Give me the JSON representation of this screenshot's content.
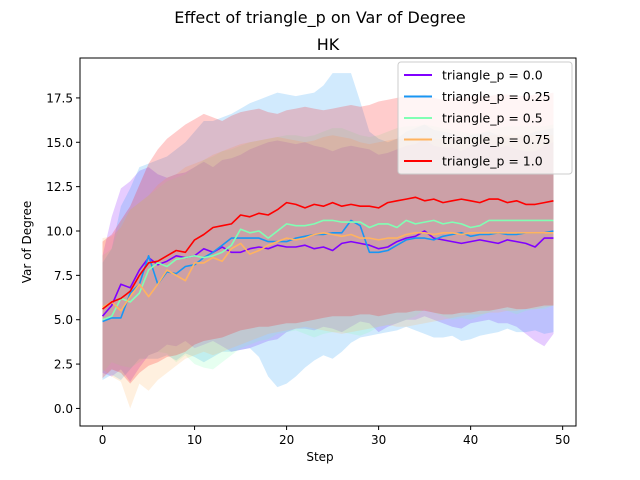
{
  "chart_data": {
    "type": "line",
    "title": "Effect of triangle_p on  Var of Degree",
    "subtitle": "HK",
    "xlabel": "Step",
    "ylabel": "Var of Degree",
    "xlim": [
      -2.45,
      51.45
    ],
    "ylim": [
      -0.99,
      19.75
    ],
    "xticks": [
      0,
      10,
      20,
      30,
      40,
      50
    ],
    "yticks": [
      0.0,
      2.5,
      5.0,
      7.5,
      10.0,
      12.5,
      15.0,
      17.5
    ],
    "grid": false,
    "legend_position": "top-right",
    "x": [
      0,
      1,
      2,
      3,
      4,
      5,
      6,
      7,
      8,
      9,
      10,
      11,
      12,
      13,
      14,
      15,
      16,
      17,
      18,
      19,
      20,
      21,
      22,
      23,
      24,
      25,
      26,
      27,
      28,
      29,
      30,
      31,
      32,
      33,
      34,
      35,
      36,
      37,
      38,
      39,
      40,
      41,
      42,
      43,
      44,
      45,
      46,
      47,
      48,
      49
    ],
    "series": [
      {
        "name": "triangle_p = 0.0",
        "color": "#8000ff",
        "values": [
          5.2,
          5.8,
          7.0,
          6.8,
          7.8,
          8.5,
          8.1,
          8.3,
          8.6,
          8.5,
          8.6,
          9.0,
          8.8,
          9.1,
          8.8,
          8.8,
          9.0,
          9.1,
          9.0,
          9.2,
          9.1,
          9.1,
          9.2,
          9.0,
          9.1,
          8.9,
          9.3,
          9.4,
          9.3,
          9.2,
          9.0,
          9.1,
          9.4,
          9.6,
          9.7,
          10.0,
          9.6,
          9.5,
          9.4,
          9.3,
          9.4,
          9.5,
          9.4,
          9.3,
          9.5,
          9.4,
          9.3,
          9.1,
          9.6,
          9.6
        ],
        "lower": [
          2.0,
          1.8,
          2.2,
          1.5,
          2.3,
          3.0,
          3.2,
          3.6,
          3.5,
          3.8,
          3.4,
          3.6,
          3.8,
          3.5,
          3.2,
          3.3,
          3.4,
          3.6,
          3.8,
          3.9,
          4.3,
          4.5,
          4.5,
          4.4,
          4.6,
          4.5,
          4.3,
          4.6,
          4.9,
          4.8,
          4.3,
          4.6,
          4.8,
          5.0,
          5.0,
          5.2,
          5.0,
          4.8,
          4.6,
          4.5,
          4.8,
          4.9,
          5.0,
          4.8,
          4.8,
          4.6,
          4.2,
          3.8,
          3.5,
          4.2
        ],
        "upper": [
          8.6,
          10.8,
          12.4,
          12.8,
          13.4,
          13.6,
          13.2,
          13.0,
          13.2,
          13.3,
          13.6,
          13.9,
          13.6,
          14.0,
          14.1,
          14.3,
          14.6,
          14.8,
          15.0,
          15.1,
          15.0,
          14.9,
          15.0,
          14.8,
          14.7,
          14.5,
          14.7,
          14.8,
          14.7,
          14.6,
          14.3,
          14.4,
          14.6,
          14.8,
          14.9,
          15.2,
          14.8,
          14.7,
          14.7,
          14.5,
          14.8,
          14.9,
          14.9,
          14.7,
          14.8,
          14.6,
          14.5,
          14.5,
          14.8,
          15.0
        ]
      },
      {
        "name": "triangle_p = 0.25",
        "color": "#1996f3",
        "values": [
          4.9,
          5.1,
          5.1,
          6.5,
          7.0,
          8.6,
          7.0,
          7.7,
          7.6,
          8.0,
          8.1,
          8.5,
          8.8,
          9.2,
          9.6,
          9.6,
          9.6,
          9.6,
          9.4,
          9.4,
          9.4,
          9.6,
          9.7,
          9.8,
          9.8,
          9.9,
          9.9,
          10.6,
          10.3,
          8.8,
          8.8,
          8.9,
          9.2,
          9.5,
          9.6,
          9.6,
          9.5,
          9.7,
          9.8,
          9.9,
          9.7,
          9.8,
          9.8,
          9.9,
          9.8,
          9.8,
          9.9,
          9.9,
          9.9,
          10.0
        ],
        "lower": [
          1.6,
          1.9,
          1.6,
          2.2,
          2.8,
          2.8,
          2.8,
          3.0,
          2.7,
          3.1,
          2.9,
          2.6,
          2.9,
          3.2,
          3.2,
          3.3,
          3.4,
          2.9,
          1.8,
          1.2,
          1.4,
          1.8,
          2.3,
          2.7,
          3.0,
          2.8,
          3.2,
          3.7,
          4.0,
          4.1,
          4.2,
          4.3,
          4.4,
          4.6,
          4.4,
          4.2,
          4.0,
          4.0,
          4.1,
          3.8,
          3.9,
          4.1,
          4.2,
          4.3,
          4.5,
          4.3,
          4.3,
          4.4,
          4.2,
          4.3
        ],
        "upper": [
          8.2,
          9.0,
          11.4,
          12.4,
          13.6,
          13.8,
          14.0,
          14.2,
          14.6,
          15.0,
          15.6,
          16.2,
          16.2,
          16.4,
          16.6,
          16.9,
          17.2,
          17.4,
          17.6,
          17.8,
          17.7,
          17.6,
          17.7,
          17.8,
          18.2,
          18.9,
          18.9,
          18.9,
          17.3,
          15.6,
          15.2,
          15.0,
          15.2,
          15.6,
          15.8,
          16.0,
          15.7,
          15.6,
          15.5,
          15.3,
          15.4,
          15.5,
          15.6,
          15.4,
          15.3,
          15.3,
          15.4,
          15.6,
          15.7,
          15.8
        ]
      },
      {
        "name": "triangle_p = 0.5",
        "color": "#80ffb4",
        "values": [
          5.0,
          5.2,
          6.2,
          6.0,
          6.5,
          7.8,
          8.2,
          8.0,
          8.4,
          8.5,
          8.6,
          8.5,
          8.6,
          8.8,
          9.2,
          10.1,
          9.9,
          10.0,
          9.6,
          10.0,
          10.4,
          10.3,
          10.3,
          10.4,
          10.6,
          10.6,
          10.5,
          10.5,
          10.5,
          10.2,
          10.4,
          10.4,
          10.2,
          10.6,
          10.4,
          10.5,
          10.6,
          10.4,
          10.5,
          10.4,
          10.2,
          10.3,
          10.6,
          10.6,
          10.6,
          10.6,
          10.6,
          10.6,
          10.6,
          10.6
        ],
        "lower": [
          2.0,
          2.6,
          2.4,
          2.3,
          2.6,
          3.0,
          3.2,
          3.1,
          2.6,
          3.0,
          2.5,
          2.3,
          2.2,
          2.6,
          3.0,
          3.4,
          3.6,
          3.8,
          3.9,
          4.2,
          4.3,
          4.4,
          4.2,
          4.0,
          4.2,
          4.3,
          4.3,
          4.2,
          4.1,
          4.3,
          4.6,
          4.7,
          4.8,
          5.0,
          5.2,
          5.6,
          5.4,
          5.2,
          5.0,
          5.1,
          5.0,
          5.2,
          5.4,
          5.6,
          5.5,
          5.3,
          5.5,
          5.6,
          5.6,
          5.8
        ],
        "upper": [
          8.6,
          9.0,
          10.5,
          11.2,
          11.6,
          12.0,
          12.4,
          12.8,
          13.0,
          13.2,
          13.6,
          14.0,
          14.2,
          14.5,
          14.6,
          14.8,
          15.0,
          15.1,
          15.2,
          15.3,
          15.4,
          15.4,
          15.3,
          15.4,
          15.6,
          15.8,
          15.8,
          15.6,
          15.4,
          15.3,
          15.4,
          15.6,
          15.8,
          15.9,
          15.9,
          16.0,
          15.9,
          15.8,
          15.7,
          15.6,
          15.5,
          15.5,
          15.7,
          15.8,
          15.9,
          15.9,
          15.9,
          15.9,
          15.9,
          16.0
        ]
      },
      {
        "name": "triangle_p = 0.75",
        "color": "#ffb360",
        "values": [
          5.7,
          6.0,
          5.5,
          6.3,
          7.0,
          6.3,
          7.0,
          7.8,
          7.5,
          7.2,
          8.2,
          8.2,
          8.5,
          8.3,
          9.0,
          9.3,
          8.7,
          8.9,
          9.2,
          9.4,
          9.6,
          9.5,
          9.6,
          9.8,
          9.9,
          9.8,
          9.7,
          9.8,
          9.6,
          9.6,
          9.5,
          9.6,
          9.6,
          9.8,
          9.9,
          9.9,
          9.8,
          9.9,
          9.9,
          9.8,
          9.9,
          9.9,
          9.9,
          9.9,
          9.9,
          9.9,
          9.9,
          9.9,
          9.9,
          9.9
        ],
        "lower": [
          2.2,
          1.8,
          1.5,
          0.0,
          1.4,
          1.0,
          1.6,
          2.0,
          2.4,
          2.8,
          3.0,
          3.2,
          3.0,
          3.2,
          3.4,
          3.6,
          3.8,
          4.0,
          4.2,
          4.3,
          4.4,
          4.5,
          4.6,
          4.5,
          4.4,
          4.3,
          4.2,
          4.3,
          4.4,
          4.5,
          4.6,
          4.7,
          4.6,
          4.6,
          4.7,
          4.8,
          4.9,
          5.0,
          5.1,
          5.2,
          5.3,
          5.3,
          5.4,
          5.4,
          5.5,
          5.5,
          5.6,
          5.6,
          5.7,
          5.8
        ],
        "upper": [
          9.6,
          9.7,
          10.2,
          11.2,
          11.6,
          12.0,
          12.6,
          13.0,
          13.2,
          13.6,
          13.8,
          14.0,
          14.3,
          14.5,
          14.7,
          14.9,
          15.0,
          15.1,
          15.2,
          15.3,
          15.2,
          15.1,
          15.0,
          15.1,
          15.3,
          15.4,
          15.3,
          15.2,
          15.0,
          14.9,
          15.0,
          15.1,
          15.2,
          15.2,
          15.3,
          15.3,
          15.2,
          15.2,
          15.3,
          15.3,
          15.3,
          15.3,
          15.4,
          15.4,
          15.4,
          15.4,
          15.4,
          15.4,
          15.4,
          15.4
        ]
      },
      {
        "name": "triangle_p = 1.0",
        "color": "#ff0000",
        "values": [
          5.6,
          6.0,
          6.2,
          6.6,
          7.5,
          8.2,
          8.3,
          8.6,
          8.9,
          8.8,
          9.5,
          9.8,
          10.2,
          10.3,
          10.4,
          10.9,
          10.8,
          11.0,
          10.9,
          11.2,
          11.6,
          11.5,
          11.3,
          11.5,
          11.4,
          11.6,
          11.4,
          11.5,
          11.4,
          11.4,
          11.3,
          11.6,
          11.7,
          11.8,
          11.9,
          11.7,
          11.8,
          11.6,
          11.7,
          11.8,
          11.7,
          11.6,
          11.8,
          11.8,
          11.6,
          11.7,
          11.5,
          11.5,
          11.6,
          11.7
        ],
        "lower": [
          1.7,
          2.2,
          2.0,
          1.4,
          2.0,
          2.4,
          2.6,
          2.9,
          3.0,
          3.2,
          3.6,
          3.8,
          3.9,
          4.0,
          4.2,
          4.4,
          4.5,
          4.6,
          4.6,
          4.7,
          4.8,
          4.8,
          4.9,
          5.0,
          5.1,
          5.2,
          5.2,
          5.2,
          5.3,
          5.3,
          5.2,
          5.3,
          5.4,
          5.4,
          5.5,
          5.5,
          5.4,
          5.3,
          5.3,
          5.4,
          5.4,
          5.5,
          5.5,
          5.6,
          5.7,
          5.6,
          5.6,
          5.7,
          5.8,
          5.8
        ],
        "upper": [
          9.4,
          9.8,
          10.6,
          11.4,
          12.6,
          13.8,
          14.6,
          15.2,
          15.6,
          16.0,
          16.3,
          16.6,
          16.4,
          16.2,
          16.5,
          16.7,
          16.8,
          16.9,
          16.7,
          16.6,
          16.8,
          16.9,
          17.0,
          16.9,
          16.8,
          16.9,
          17.0,
          17.1,
          17.0,
          17.1,
          17.3,
          17.4,
          17.5,
          17.6,
          17.6,
          17.7,
          17.5,
          17.4,
          17.5,
          17.5,
          17.6,
          17.6,
          17.6,
          17.7,
          17.7,
          17.6,
          17.6,
          17.7,
          17.7,
          17.8
        ]
      }
    ]
  }
}
